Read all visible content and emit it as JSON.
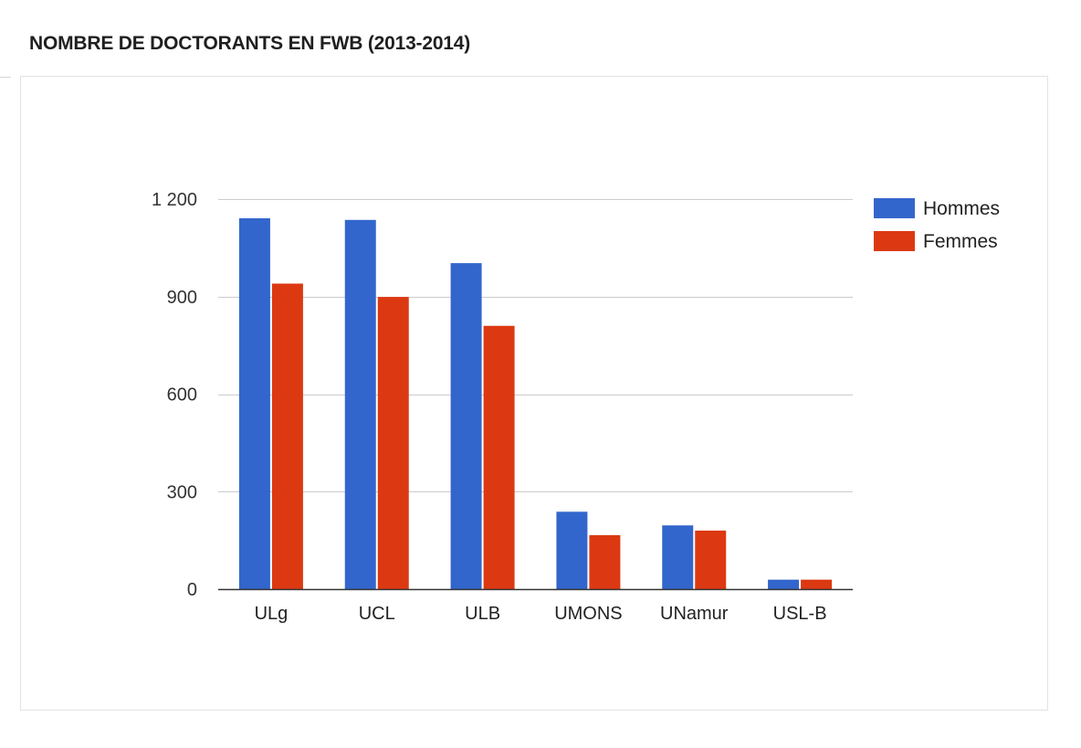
{
  "page": {
    "title": "NOMBRE DE DOCTORANTS EN FWB (2013-2014)"
  },
  "chart_data": {
    "type": "bar",
    "title": "NOMBRE DE DOCTORANTS EN FWB (2013-2014)",
    "categories": [
      "ULg",
      "UCL",
      "ULB",
      "UMONS",
      "UNamur",
      "USL-B"
    ],
    "series": [
      {
        "name": "Hommes",
        "color": "#3366cc",
        "values": [
          1141,
          1136,
          1003,
          238,
          196,
          29
        ]
      },
      {
        "name": "Femmes",
        "color": "#dc3912",
        "values": [
          940,
          899,
          810,
          166,
          180,
          29
        ]
      }
    ],
    "ylim": [
      0,
      1200
    ],
    "yticks": [
      0,
      300,
      600,
      900,
      1200
    ],
    "ytick_labels": [
      "0",
      "300",
      "600",
      "900",
      "1 200"
    ],
    "grid": true,
    "legend_position": "right",
    "xlabel": "",
    "ylabel": ""
  }
}
